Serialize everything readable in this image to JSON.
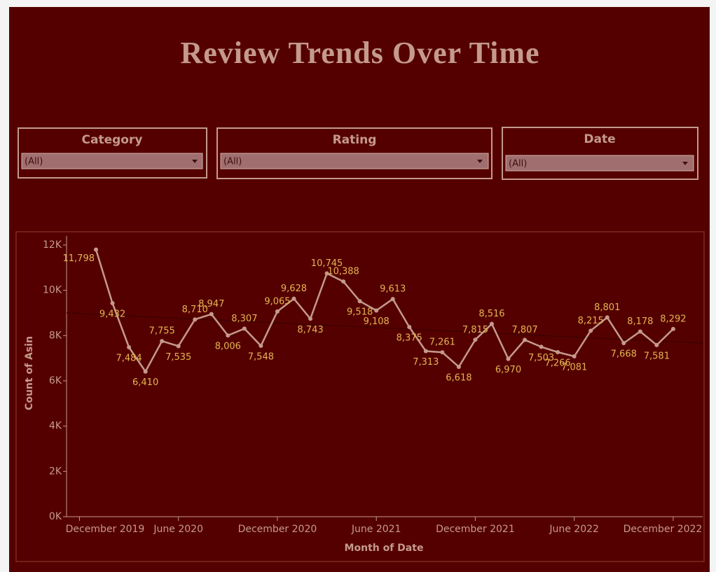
{
  "filters": [
    {
      "label": "Category",
      "value": "(All)"
    },
    {
      "label": "Rating",
      "value": "(All)"
    },
    {
      "label": "Date",
      "value": "(All)"
    }
  ],
  "chart_data": {
    "type": "line",
    "title": "Review Trends Over Time",
    "x_label": "Month of Date",
    "y_label": "Count of Asin",
    "x": [
      "2020-01",
      "2020-02",
      "2020-03",
      "2020-04",
      "2020-05",
      "2020-06",
      "2020-07",
      "2020-08",
      "2020-09",
      "2020-10",
      "2020-11",
      "2020-12",
      "2021-01",
      "2021-02",
      "2021-03",
      "2021-04",
      "2021-05",
      "2021-06",
      "2021-07",
      "2021-08",
      "2021-09",
      "2021-10",
      "2021-11",
      "2021-12",
      "2022-01",
      "2022-02",
      "2022-03",
      "2022-04",
      "2022-05",
      "2022-06",
      "2022-07",
      "2022-08",
      "2022-09",
      "2022-10",
      "2022-11",
      "2022-12"
    ],
    "series": [
      {
        "name": "Count of Asin",
        "color": "#c49a8c",
        "values": [
          11798,
          9432,
          7484,
          6410,
          7755,
          7535,
          8710,
          8947,
          8006,
          8307,
          7548,
          9065,
          9628,
          8743,
          10745,
          10388,
          9518,
          9108,
          9613,
          8375,
          7313,
          7261,
          6618,
          7815,
          8516,
          6970,
          7807,
          7503,
          7266,
          7081,
          8215,
          8801,
          7668,
          8178,
          7581,
          8292
        ],
        "value_labels": [
          "11,798",
          "9,432",
          "7,484",
          "6,410",
          "7,755",
          "7,535",
          "8,710",
          "8,947",
          "8,006",
          "8,307",
          "7,548",
          "9,065",
          "9,628",
          "8,743",
          "10,745",
          "10,388",
          "9,518",
          "9,108",
          "9,613",
          "8,375",
          "7,313",
          "7,261",
          "6,618",
          "7,815",
          "8,516",
          "6,970",
          "7,807",
          "7,503",
          "7,266",
          "7,081",
          "8,215",
          "8,801",
          "7,668",
          "8,178",
          "7,581",
          "8,292"
        ]
      }
    ],
    "label_color": "#e2b552",
    "trend_line": true,
    "ylim": [
      0,
      12400
    ],
    "yticks": [
      {
        "value": 0,
        "label": "0K"
      },
      {
        "value": 2000,
        "label": "2K"
      },
      {
        "value": 4000,
        "label": "4K"
      },
      {
        "value": 6000,
        "label": "6K"
      },
      {
        "value": 8000,
        "label": "8K"
      },
      {
        "value": 10000,
        "label": "10K"
      },
      {
        "value": 12000,
        "label": "12K"
      }
    ],
    "xticks": [
      {
        "value": "2019-12",
        "label": "December 2019"
      },
      {
        "value": "2020-06",
        "label": "June 2020"
      },
      {
        "value": "2020-12",
        "label": "December 2020"
      },
      {
        "value": "2021-06",
        "label": "June 2021"
      },
      {
        "value": "2021-12",
        "label": "December 2021"
      },
      {
        "value": "2022-06",
        "label": "June 2022"
      },
      {
        "value": "2022-12",
        "label": "December 2022"
      }
    ]
  }
}
